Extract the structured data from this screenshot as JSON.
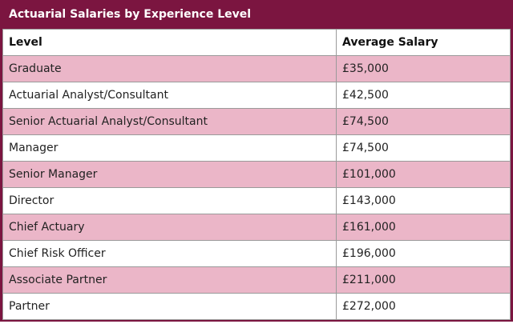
{
  "title": "Actuarial Salaries by Experience Level",
  "table": {
    "header": [
      "Level",
      "Average Salary"
    ],
    "rows": [
      [
        "Graduate",
        "£35,000"
      ],
      [
        "Actuarial Analyst/Consultant",
        "£42,500"
      ],
      [
        "Senior Actuarial Analyst/Consultant",
        "£74,500"
      ],
      [
        "Manager",
        "£74,500"
      ],
      [
        "Senior Manager",
        "£101,000"
      ],
      [
        "Director",
        "£143,000"
      ],
      [
        "Chief Actuary",
        "£161,000"
      ],
      [
        "Chief Risk Officer",
        "£196,000"
      ],
      [
        "Associate Partner",
        "£211,000"
      ],
      [
        "Partner",
        "£272,000"
      ]
    ]
  }
}
